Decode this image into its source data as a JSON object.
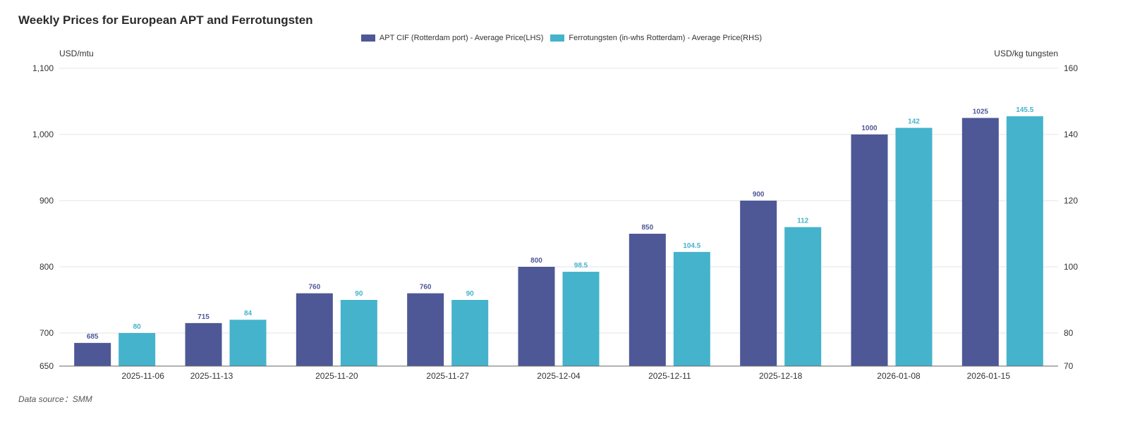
{
  "title": "Weekly Prices for European APT and Ferrotungsten",
  "source": "Data source：SMM",
  "colors": {
    "series1": "#4e5897",
    "series2": "#45b3cb",
    "grid": "#e4e4e4",
    "axis": "#666666"
  },
  "chart_data": {
    "type": "bar",
    "title": "Weekly Prices for European APT and Ferrotungsten",
    "categories": [
      "2025-11-06",
      "2025-11-13",
      "2025-11-20",
      "2025-11-27",
      "2025-12-04",
      "2025-12-11",
      "2025-12-18",
      "2026-01-08",
      "2026-01-15"
    ],
    "series": [
      {
        "name": "APT CIF (Rotterdam port) - Average Price(LHS)",
        "axis": "left",
        "values": [
          685,
          715,
          760,
          760,
          800,
          850,
          900,
          1000,
          1025
        ],
        "labels": [
          "685",
          "715",
          "760",
          "760",
          "800",
          "850",
          "900",
          "1000",
          "1025"
        ]
      },
      {
        "name": "Ferrotungsten (in-whs Rotterdam) - Average Price(RHS)",
        "axis": "right",
        "values": [
          80,
          84,
          90,
          90,
          98.5,
          104.5,
          112,
          142,
          145.5
        ],
        "labels": [
          "80",
          "84",
          "90",
          "90",
          "98.5",
          "104.5",
          "112",
          "142",
          "145.5"
        ]
      }
    ],
    "y_left": {
      "label": "USD/mtu",
      "ylim": [
        650,
        1100
      ],
      "ticks": [
        650,
        700,
        800,
        900,
        1000,
        1100
      ],
      "tick_labels": [
        "650",
        "700",
        "800",
        "900",
        "1,000",
        "1,100"
      ]
    },
    "y_right": {
      "label": "USD/kg tungsten",
      "ylim": [
        70,
        160
      ],
      "ticks": [
        70,
        80,
        100,
        120,
        140,
        160
      ],
      "tick_labels": [
        "70",
        "80",
        "100",
        "120",
        "140",
        "160"
      ]
    },
    "grid": true,
    "legend": "top-center"
  }
}
